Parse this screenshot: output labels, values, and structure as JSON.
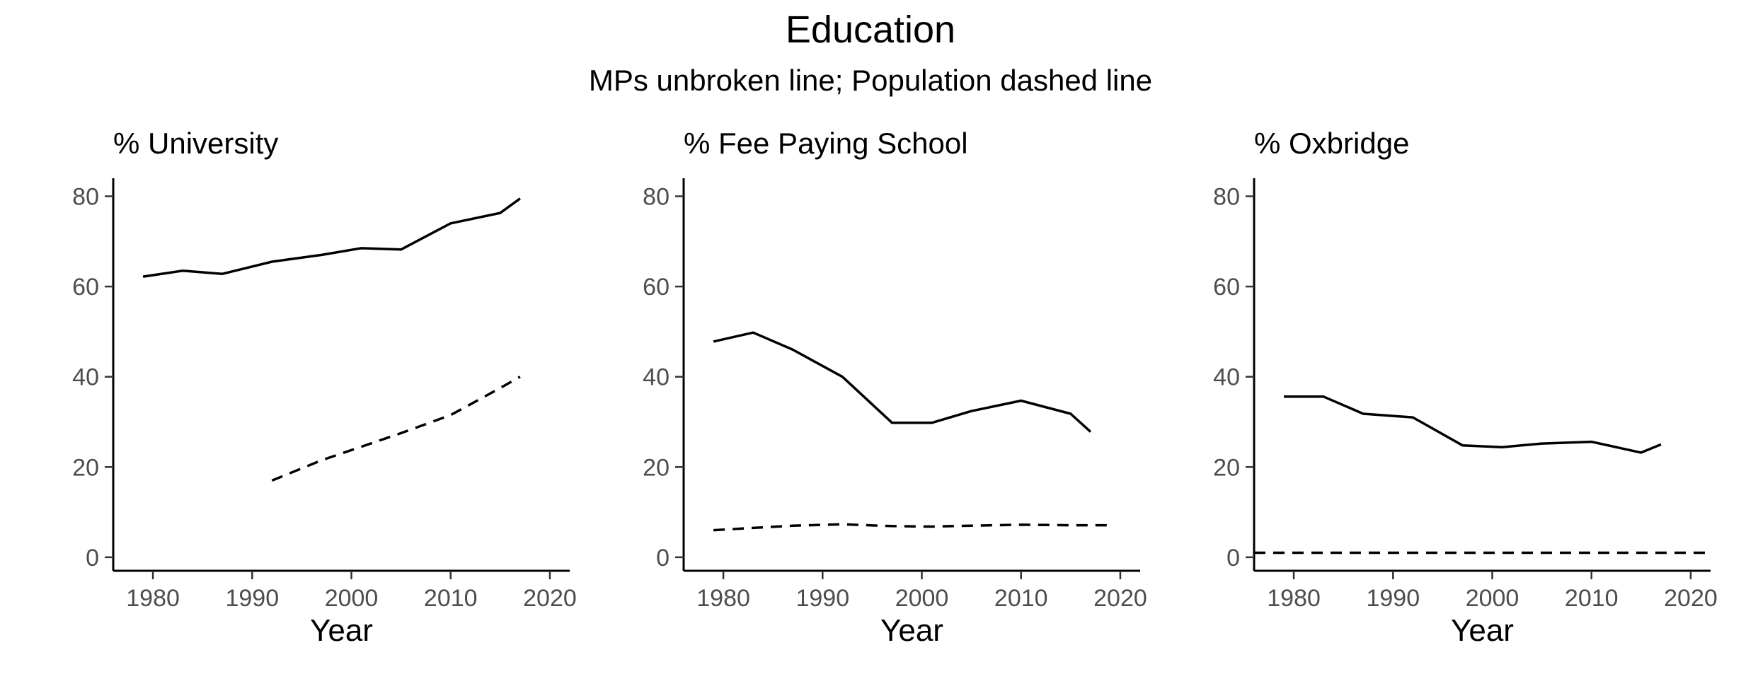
{
  "figure": {
    "title": "Education",
    "subtitle": "MPs unbroken line; Population dashed line"
  },
  "chart_data": [
    {
      "type": "line",
      "title": "% University",
      "xlabel": "Year",
      "ylabel": "",
      "xlim": [
        1976,
        2022
      ],
      "ylim": [
        -3,
        84
      ],
      "xticks": [
        1980,
        1990,
        2000,
        2010,
        2020
      ],
      "yticks": [
        0,
        20,
        40,
        60,
        80
      ],
      "grid": false,
      "legend": "none",
      "series": [
        {
          "style": "solid",
          "x": [
            1979,
            1983,
            1987,
            1992,
            1997,
            2001,
            2005,
            2010,
            2015,
            2017
          ],
          "y": [
            62.2,
            63.5,
            62.8,
            65.5,
            67.0,
            68.5,
            68.2,
            74.0,
            76.3,
            79.5
          ]
        },
        {
          "style": "dashed",
          "x": [
            1992,
            1997,
            2001,
            2005,
            2010,
            2015,
            2017
          ],
          "y": [
            17.0,
            21.5,
            24.5,
            27.5,
            31.5,
            37.5,
            40.0
          ]
        }
      ]
    },
    {
      "type": "line",
      "title": "% Fee Paying School",
      "xlabel": "Year",
      "ylabel": "",
      "xlim": [
        1976,
        2022
      ],
      "ylim": [
        -3,
        84
      ],
      "xticks": [
        1980,
        1990,
        2000,
        2010,
        2020
      ],
      "yticks": [
        0,
        20,
        40,
        60,
        80
      ],
      "grid": false,
      "legend": "none",
      "series": [
        {
          "style": "solid",
          "x": [
            1979,
            1983,
            1987,
            1992,
            1997,
            2001,
            2005,
            2010,
            2015,
            2017
          ],
          "y": [
            47.8,
            49.8,
            46.0,
            40.0,
            29.8,
            29.8,
            32.4,
            34.7,
            31.8,
            27.8
          ]
        },
        {
          "style": "dashed",
          "x": [
            1979,
            1983,
            1987,
            1992,
            1997,
            2001,
            2005,
            2010,
            2015,
            2019
          ],
          "y": [
            6.0,
            6.5,
            7.0,
            7.3,
            6.9,
            6.8,
            7.0,
            7.2,
            7.1,
            7.1
          ]
        }
      ]
    },
    {
      "type": "line",
      "title": "% Oxbridge",
      "xlabel": "Year",
      "ylabel": "",
      "xlim": [
        1976,
        2022
      ],
      "ylim": [
        -3,
        84
      ],
      "xticks": [
        1980,
        1990,
        2000,
        2010,
        2020
      ],
      "yticks": [
        0,
        20,
        40,
        60,
        80
      ],
      "grid": false,
      "legend": "none",
      "series": [
        {
          "style": "solid",
          "x": [
            1979,
            1983,
            1987,
            1992,
            1997,
            2001,
            2005,
            2010,
            2015,
            2017
          ],
          "y": [
            35.6,
            35.6,
            31.8,
            31.0,
            24.8,
            24.4,
            25.2,
            25.6,
            23.2,
            25.0
          ]
        },
        {
          "style": "dashed",
          "x": [
            1976,
            2022
          ],
          "y": [
            1.0,
            1.0
          ]
        }
      ]
    }
  ]
}
